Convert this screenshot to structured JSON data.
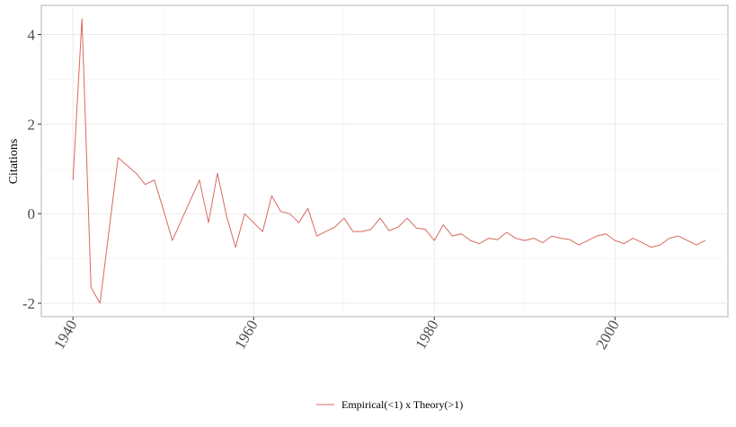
{
  "chart_data": {
    "type": "line",
    "title": "",
    "xlabel": "",
    "ylabel": "Citations",
    "xlim": [
      1936.5,
      2012.5
    ],
    "ylim": [
      -2.3,
      4.65
    ],
    "x_ticks": [
      1940,
      1960,
      1980,
      2000
    ],
    "y_ticks": [
      -2,
      0,
      2,
      4
    ],
    "grid": true,
    "legend_position": "bottom",
    "series": [
      {
        "name": "Empirical(<1) x Theory(>1)",
        "color": "#d9695f",
        "x": [
          1940,
          1941,
          1942,
          1943,
          1945,
          1947,
          1948,
          1949,
          1950,
          1951,
          1954,
          1955,
          1956,
          1957,
          1958,
          1959,
          1960,
          1961,
          1962,
          1963,
          1964,
          1965,
          1966,
          1967,
          1968,
          1969,
          1970,
          1971,
          1972,
          1973,
          1974,
          1975,
          1976,
          1977,
          1978,
          1979,
          1980,
          1981,
          1982,
          1983,
          1984,
          1985,
          1986,
          1987,
          1988,
          1989,
          1990,
          1991,
          1992,
          1993,
          1994,
          1995,
          1996,
          1997,
          1998,
          1999,
          2000,
          2001,
          2002,
          2003,
          2004,
          2005,
          2006,
          2007,
          2008,
          2009,
          2010
        ],
        "values": [
          0.75,
          4.35,
          -1.65,
          -2.0,
          1.25,
          0.9,
          0.65,
          0.75,
          0.1,
          -0.6,
          0.75,
          -0.2,
          0.9,
          -0.05,
          -0.75,
          0.0,
          -0.2,
          -0.4,
          0.4,
          0.05,
          0.0,
          -0.2,
          0.12,
          -0.5,
          -0.4,
          -0.3,
          -0.1,
          -0.4,
          -0.4,
          -0.35,
          -0.1,
          -0.38,
          -0.3,
          -0.1,
          -0.32,
          -0.35,
          -0.6,
          -0.25,
          -0.5,
          -0.45,
          -0.6,
          -0.67,
          -0.55,
          -0.58,
          -0.42,
          -0.55,
          -0.6,
          -0.55,
          -0.65,
          -0.5,
          -0.55,
          -0.58,
          -0.7,
          -0.6,
          -0.5,
          -0.45,
          -0.6,
          -0.67,
          -0.55,
          -0.65,
          -0.75,
          -0.7,
          -0.55,
          -0.5,
          -0.6,
          -0.7,
          -0.6
        ]
      }
    ]
  }
}
